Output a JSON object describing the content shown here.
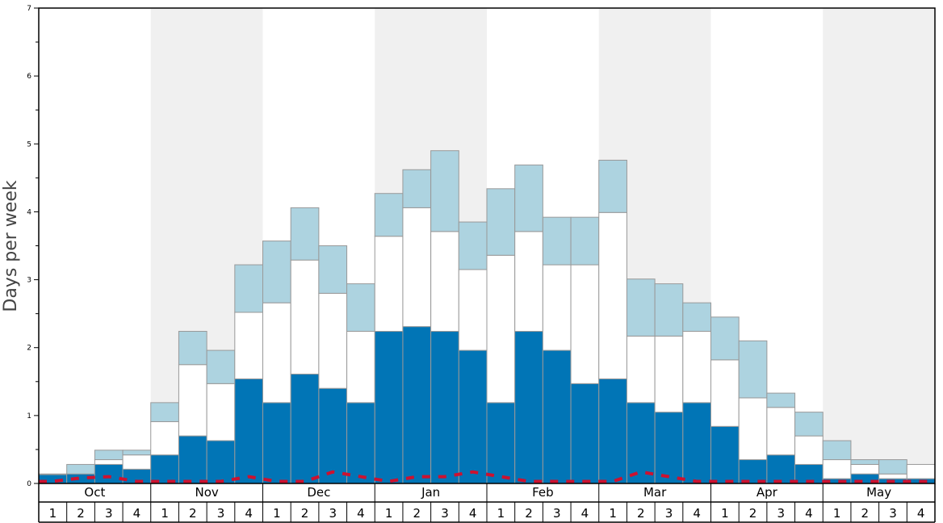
{
  "chart_data": {
    "type": "bar",
    "stacked": true,
    "ylabel": "Days per week",
    "ylim": [
      0,
      7
    ],
    "yticks": [
      0,
      1,
      2,
      3,
      4,
      5,
      6,
      7
    ],
    "months": [
      "Oct",
      "Nov",
      "Dec",
      "Jan",
      "Feb",
      "Mar",
      "Apr",
      "May"
    ],
    "week_labels": [
      "1",
      "2",
      "3",
      "4"
    ],
    "categories": [
      "Oct 1",
      "Oct 2",
      "Oct 3",
      "Oct 4",
      "Nov 1",
      "Nov 2",
      "Nov 3",
      "Nov 4",
      "Dec 1",
      "Dec 2",
      "Dec 3",
      "Dec 4",
      "Jan 1",
      "Jan 2",
      "Jan 3",
      "Jan 4",
      "Feb 1",
      "Feb 2",
      "Feb 3",
      "Feb 4",
      "Mar 1",
      "Mar 2",
      "Mar 3",
      "Mar 4",
      "Apr 1",
      "Apr 2",
      "Apr 3",
      "Apr 4",
      "May 1",
      "May 2",
      "May 3",
      "May 4"
    ],
    "series": [
      {
        "color": "#0175b6",
        "values": [
          0.13,
          0.14,
          0.28,
          0.21,
          0.42,
          0.7,
          0.63,
          1.54,
          1.19,
          1.61,
          1.4,
          1.19,
          2.24,
          2.31,
          2.24,
          1.96,
          1.19,
          2.24,
          1.96,
          1.47,
          1.54,
          1.19,
          1.05,
          1.19,
          0.84,
          0.35,
          0.42,
          0.28,
          0.07,
          0.14,
          0.07,
          0.07
        ]
      },
      {
        "color": "#ffffff",
        "values": [
          0.0,
          0.0,
          0.07,
          0.21,
          0.49,
          1.05,
          0.84,
          0.98,
          1.47,
          1.68,
          1.4,
          1.05,
          1.4,
          1.75,
          1.47,
          1.19,
          2.17,
          1.47,
          1.26,
          1.75,
          2.45,
          0.98,
          1.12,
          1.05,
          0.98,
          0.91,
          0.7,
          0.42,
          0.28,
          0.14,
          0.07,
          0.21
        ]
      },
      {
        "color": "#add3e0",
        "values": [
          0.01,
          0.14,
          0.14,
          0.07,
          0.28,
          0.49,
          0.49,
          0.7,
          0.91,
          0.77,
          0.7,
          0.7,
          0.63,
          0.56,
          1.19,
          0.7,
          0.98,
          0.98,
          0.7,
          0.7,
          0.77,
          0.84,
          0.77,
          0.42,
          0.63,
          0.84,
          0.21,
          0.35,
          0.28,
          0.07,
          0.21,
          0.0
        ]
      }
    ],
    "dashed_line": {
      "color": "#cc1230",
      "values": [
        0.03,
        0.08,
        0.1,
        0.03,
        0.03,
        0.03,
        0.03,
        0.1,
        0.03,
        0.03,
        0.17,
        0.1,
        0.03,
        0.1,
        0.1,
        0.17,
        0.1,
        0.03,
        0.03,
        0.03,
        0.03,
        0.17,
        0.1,
        0.03,
        0.03,
        0.03,
        0.03,
        0.03,
        0.03,
        0.03,
        0.03,
        0.03
      ]
    },
    "shaded_month_background": "#f0f0f0",
    "grid": false
  }
}
